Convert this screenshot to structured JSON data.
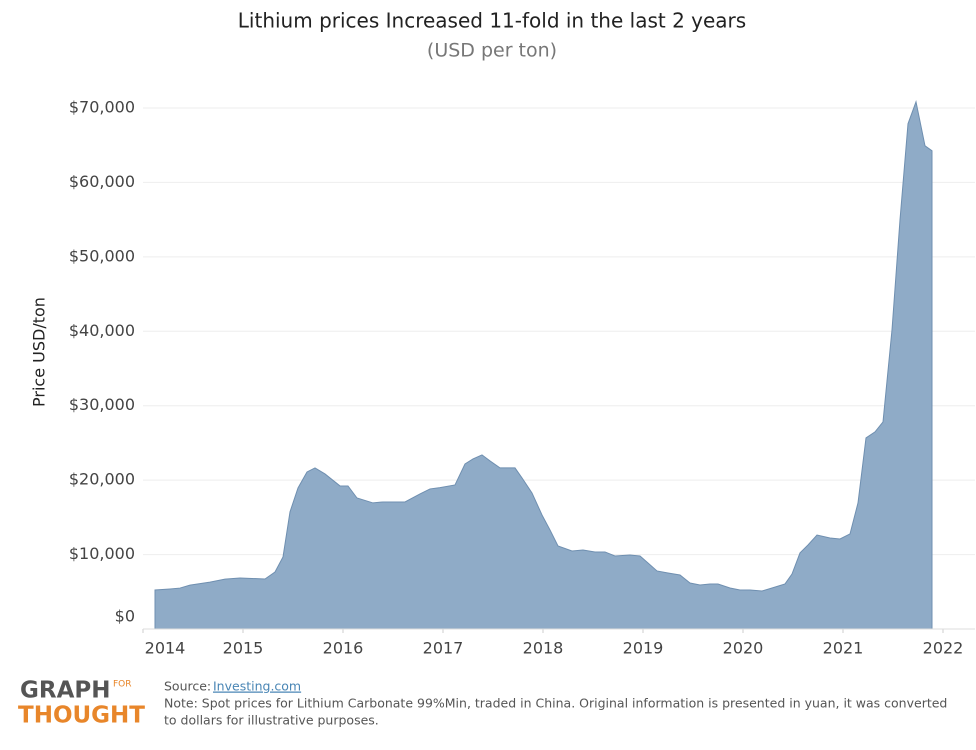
{
  "chart_data": {
    "type": "area",
    "title": "Lithium prices Increased 11-fold in the last 2 years",
    "subtitle": "(USD per ton)",
    "y_label": "Price USD/ton",
    "color": "#8fabc7",
    "line_color": "#6f8fb0",
    "x": [
      2014.12,
      2014.27,
      2014.37,
      2014.47,
      2014.67,
      2014.82,
      2014.97,
      2015.22,
      2015.32,
      2015.4,
      2015.47,
      2015.55,
      2015.64,
      2015.72,
      2015.82,
      2015.97,
      2016.05,
      2016.14,
      2016.3,
      2016.4,
      2016.62,
      2016.77,
      2016.87,
      2016.97,
      2017.12,
      2017.22,
      2017.3,
      2017.39,
      2017.47,
      2017.57,
      2017.72,
      2017.79,
      2017.89,
      2017.99,
      2018.07,
      2018.15,
      2018.29,
      2018.4,
      2018.52,
      2018.62,
      2018.72,
      2018.87,
      2018.97,
      2019.05,
      2019.14,
      2019.25,
      2019.37,
      2019.47,
      2019.57,
      2019.67,
      2019.75,
      2019.87,
      2019.97,
      2020.07,
      2020.19,
      2020.29,
      2020.42,
      2020.49,
      2020.57,
      2020.65,
      2020.74,
      2020.87,
      2020.97,
      2021.07,
      2021.15,
      2021.23,
      2021.32,
      2021.4,
      2021.49,
      2021.57,
      2021.65,
      2021.73,
      2021.82,
      2021.89
    ],
    "values": [
      5240,
      5380,
      5500,
      5900,
      6300,
      6700,
      6850,
      6720,
      7660,
      9680,
      15730,
      18950,
      21100,
      21640,
      20830,
      19220,
      19220,
      17600,
      16940,
      17070,
      17070,
      18150,
      18820,
      19000,
      19350,
      22180,
      22850,
      23390,
      22580,
      21640,
      21640,
      20300,
      18280,
      15320,
      13310,
      11160,
      10480,
      10620,
      10350,
      10350,
      9810,
      9950,
      9810,
      8870,
      7800,
      7530,
      7260,
      6180,
      5910,
      6050,
      6050,
      5510,
      5240,
      5240,
      5110,
      5510,
      6050,
      7390,
      10220,
      11290,
      12630,
      12230,
      12100,
      12770,
      16940,
      25670,
      26480,
      27820,
      40190,
      54970,
      67880,
      70830,
      64920,
      64250
    ],
    "xlim": [
      2014,
      2022.32
    ],
    "xticks": [
      2014,
      2015,
      2016,
      2017,
      2018,
      2019,
      2020,
      2021,
      2022
    ],
    "ylim": [
      0,
      70000
    ],
    "yticks": [
      {
        "value": 0,
        "label": "$0"
      },
      {
        "value": 10000,
        "label": "$10,000"
      },
      {
        "value": 20000,
        "label": "$20,000"
      },
      {
        "value": 30000,
        "label": "$30,000"
      },
      {
        "value": 40000,
        "label": "$40,000"
      },
      {
        "value": 50000,
        "label": "$50,000"
      },
      {
        "value": 60000,
        "label": "$60,000"
      },
      {
        "value": 70000,
        "label": "$70,000"
      }
    ],
    "grid": true
  },
  "footer": {
    "source_label": "Source:",
    "source_link": "Investing.com",
    "note": [
      "Note: Spot prices for Lithium Carbonate 99%Min, traded in China. Original information is presented in yuan, it was converted",
      "to dollars for illustrative purposes."
    ]
  },
  "logo": {
    "line1": "GRAPH",
    "small": "FOR",
    "line2": "THOUGHT"
  }
}
